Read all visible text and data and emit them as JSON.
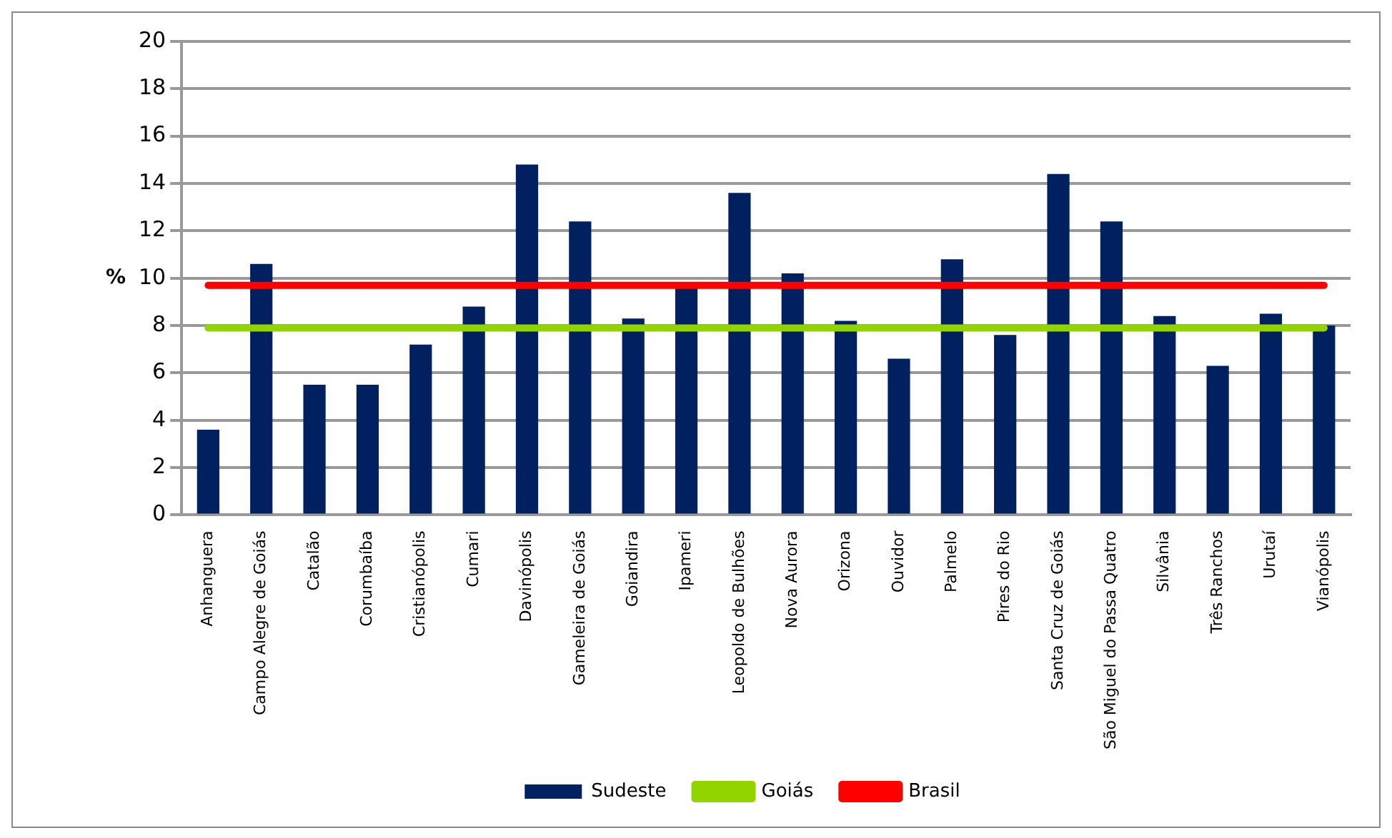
{
  "chart_data": {
    "type": "bar",
    "ylabel": "%",
    "categories": [
      "Anhanguera",
      "Campo Alegre de Goiás",
      "Catalão",
      "Corumbaíba",
      "Cristianópolis",
      "Cumari",
      "Davinópolis",
      "Gameleira de Goiás",
      "Goiandira",
      "Ipameri",
      "Leopoldo de Bulhões",
      "Nova Aurora",
      "Orizona",
      "Ouvidor",
      "Palmelo",
      "Pires do Rio",
      "Santa Cruz de Goiás",
      "São Miguel do Passa Quatro",
      "Silvânia",
      "Três Ranchos",
      "Urutaí",
      "Vianópolis"
    ],
    "series": [
      {
        "name": "Sudeste",
        "color": "#002060",
        "values": [
          3.6,
          10.6,
          5.5,
          5.5,
          7.2,
          8.8,
          14.8,
          12.4,
          8.3,
          9.6,
          13.6,
          10.2,
          8.2,
          6.6,
          10.8,
          7.6,
          14.4,
          12.4,
          8.4,
          6.3,
          8.5,
          8.0
        ]
      },
      {
        "name": "Goiás",
        "type": "line",
        "color": "#92d400",
        "values": [
          7.9,
          7.9,
          7.9,
          7.9,
          7.9,
          7.9,
          7.9,
          7.9,
          7.9,
          7.9,
          7.9,
          7.9,
          7.9,
          7.9,
          7.9,
          7.9,
          7.9,
          7.9,
          7.9,
          7.9,
          7.9,
          7.9
        ]
      },
      {
        "name": "Brasil",
        "type": "line",
        "color": "#ff0000",
        "values": [
          9.7,
          9.7,
          9.7,
          9.7,
          9.7,
          9.7,
          9.7,
          9.7,
          9.7,
          9.7,
          9.7,
          9.7,
          9.7,
          9.7,
          9.7,
          9.7,
          9.7,
          9.7,
          9.7,
          9.7,
          9.7,
          9.7
        ]
      }
    ],
    "ylim": [
      0,
      20
    ],
    "yticks": [
      0,
      2,
      4,
      6,
      8,
      10,
      12,
      14,
      16,
      18,
      20
    ],
    "grid": "y",
    "legend": "bottom",
    "marker": "none"
  }
}
